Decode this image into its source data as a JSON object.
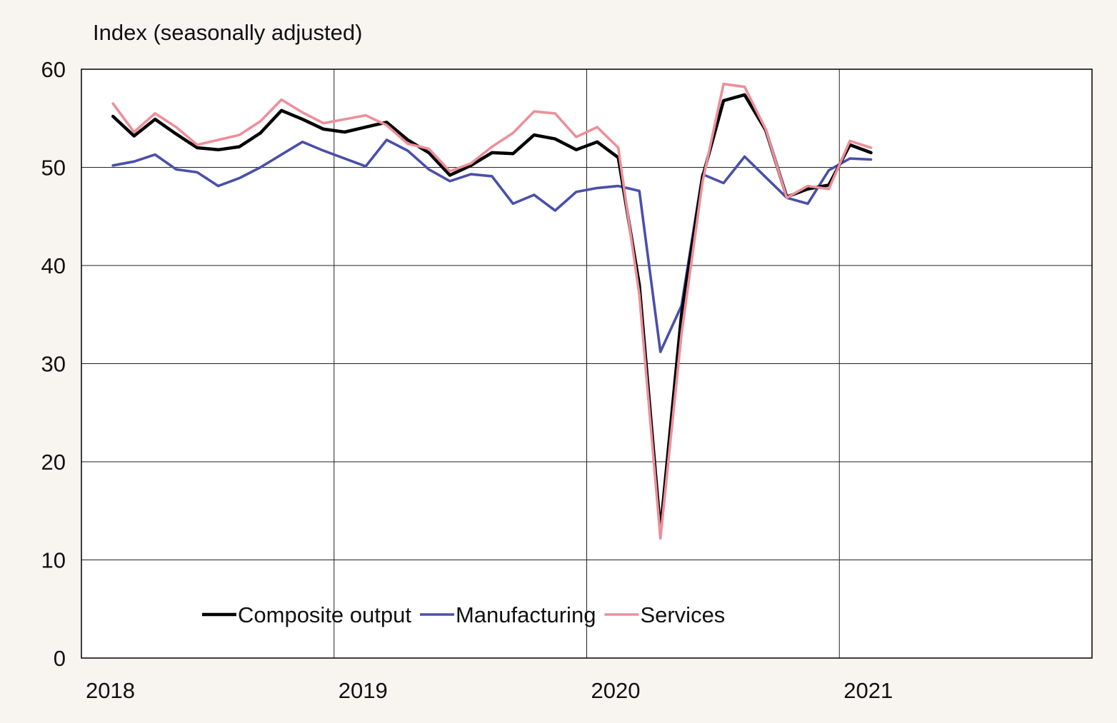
{
  "chart_data": {
    "type": "line",
    "title": "",
    "ylabel": "Index (seasonally adjusted)",
    "xlabel": "",
    "ylim": [
      0,
      60
    ],
    "yticks": [
      0,
      10,
      20,
      30,
      40,
      50,
      60
    ],
    "xlim": [
      "2018-01",
      "2021-12"
    ],
    "xticks": [
      "2018",
      "2019",
      "2020",
      "2021"
    ],
    "grid": true,
    "legend_position": "bottom-center",
    "series": [
      {
        "name": "Composite output",
        "color": "#000000",
        "x": [
          "2018-02",
          "2018-03",
          "2018-04",
          "2018-05",
          "2018-06",
          "2018-07",
          "2018-08",
          "2018-09",
          "2018-10",
          "2018-11",
          "2018-12",
          "2019-01",
          "2019-02",
          "2019-03",
          "2019-04",
          "2019-05",
          "2019-06",
          "2019-07",
          "2019-08",
          "2019-09",
          "2019-10",
          "2019-11",
          "2019-12",
          "2020-01",
          "2020-02",
          "2020-03",
          "2020-04",
          "2020-05",
          "2020-06",
          "2020-07",
          "2020-08",
          "2020-09",
          "2020-10",
          "2020-11",
          "2020-12",
          "2021-01",
          "2021-02"
        ],
        "values": [
          55.2,
          53.2,
          54.9,
          53.4,
          52.0,
          51.8,
          52.1,
          53.5,
          55.8,
          54.9,
          53.9,
          53.6,
          54.1,
          54.6,
          52.8,
          51.5,
          49.2,
          50.2,
          51.5,
          51.4,
          53.3,
          52.9,
          51.8,
          52.6,
          51.0,
          38.0,
          13.0,
          35.0,
          49.0,
          56.8,
          57.4,
          53.8,
          47.0,
          47.8,
          48.2,
          52.3,
          51.5
        ]
      },
      {
        "name": "Manufacturing",
        "color": "#4a4fa8",
        "x": [
          "2018-02",
          "2018-03",
          "2018-04",
          "2018-05",
          "2018-06",
          "2018-07",
          "2018-08",
          "2018-09",
          "2018-10",
          "2018-11",
          "2018-12",
          "2019-01",
          "2019-02",
          "2019-03",
          "2019-04",
          "2019-05",
          "2019-06",
          "2019-07",
          "2019-08",
          "2019-09",
          "2019-10",
          "2019-11",
          "2019-12",
          "2020-01",
          "2020-02",
          "2020-03",
          "2020-04",
          "2020-05",
          "2020-06",
          "2020-07",
          "2020-08",
          "2020-09",
          "2020-10",
          "2020-11",
          "2020-12",
          "2021-01",
          "2021-02"
        ],
        "values": [
          50.2,
          50.6,
          51.3,
          49.8,
          49.5,
          48.1,
          48.9,
          50.0,
          51.3,
          52.6,
          51.7,
          50.9,
          50.1,
          52.8,
          51.7,
          49.8,
          48.6,
          49.3,
          49.1,
          46.3,
          47.2,
          45.6,
          47.5,
          47.9,
          48.1,
          47.6,
          31.2,
          35.9,
          49.3,
          48.4,
          51.1,
          49.0,
          46.9,
          46.3,
          49.7,
          50.9,
          50.8
        ]
      },
      {
        "name": "Services",
        "color": "#ec8f9a",
        "x": [
          "2018-02",
          "2018-03",
          "2018-04",
          "2018-05",
          "2018-06",
          "2018-07",
          "2018-08",
          "2018-09",
          "2018-10",
          "2018-11",
          "2018-12",
          "2019-01",
          "2019-02",
          "2019-03",
          "2019-04",
          "2019-05",
          "2019-06",
          "2019-07",
          "2019-08",
          "2019-09",
          "2019-10",
          "2019-11",
          "2019-12",
          "2020-01",
          "2020-02",
          "2020-03",
          "2020-04",
          "2020-05",
          "2020-06",
          "2020-07",
          "2020-08",
          "2020-09",
          "2020-10",
          "2020-11",
          "2020-12",
          "2021-01",
          "2021-02"
        ],
        "values": [
          56.5,
          53.6,
          55.5,
          54.1,
          52.3,
          52.8,
          53.3,
          54.7,
          56.9,
          55.6,
          54.5,
          54.9,
          55.3,
          54.3,
          52.4,
          51.9,
          49.6,
          50.4,
          52.1,
          53.5,
          55.7,
          55.5,
          53.1,
          54.1,
          52.0,
          37.0,
          12.2,
          33.0,
          48.5,
          58.5,
          58.2,
          53.9,
          46.9,
          48.1,
          47.8,
          52.7,
          52.0
        ]
      }
    ]
  }
}
